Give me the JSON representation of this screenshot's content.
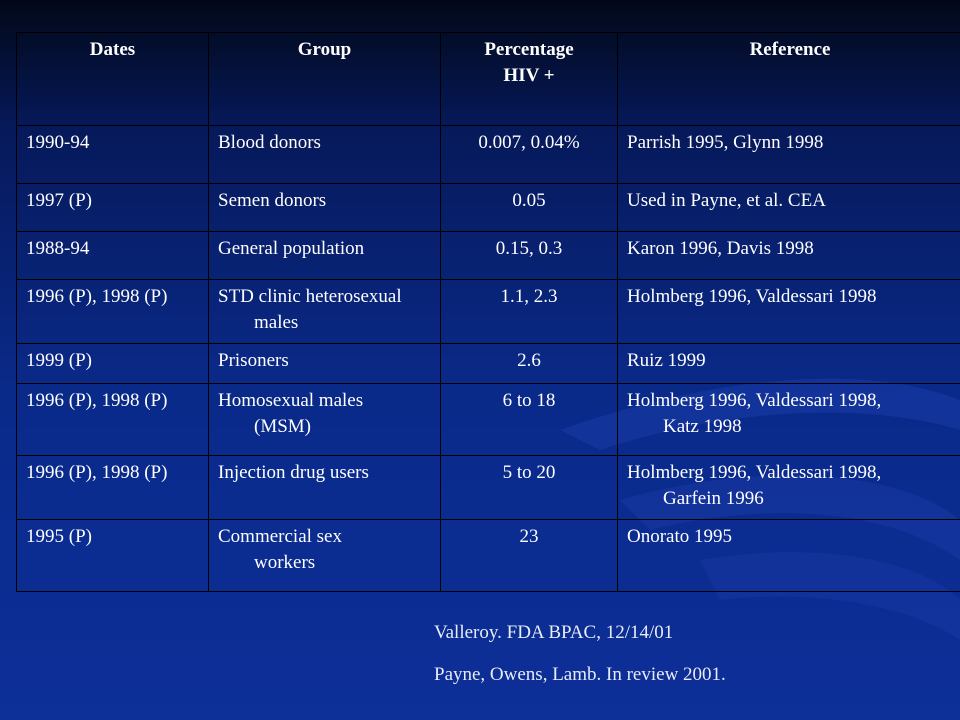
{
  "table": {
    "headers": {
      "dates": "Dates",
      "group": "Group",
      "percentage": [
        "Percentage",
        "HIV +"
      ],
      "reference": "Reference"
    },
    "rows": [
      {
        "dates": "1990-94",
        "group": [
          "Blood donors"
        ],
        "percentage": "0.007, 0.04%",
        "reference": [
          "Parrish 1995, Glynn 1998"
        ]
      },
      {
        "dates": "1997  (P)",
        "group": [
          "Semen donors"
        ],
        "percentage": "0.05",
        "reference": [
          "Used in Payne, et al. CEA"
        ]
      },
      {
        "dates": "1988-94",
        "group": [
          "General population"
        ],
        "percentage": "0.15, 0.3",
        "reference": [
          "Karon 1996, Davis 1998"
        ]
      },
      {
        "dates": "1996 (P), 1998 (P)",
        "group": [
          "STD clinic heterosexual",
          "males"
        ],
        "percentage": "1.1, 2.3",
        "reference": [
          "Holmberg 1996, Valdessari 1998"
        ]
      },
      {
        "dates": "1999 (P)",
        "group": [
          "Prisoners"
        ],
        "percentage": "2.6",
        "reference": [
          "Ruiz 1999"
        ]
      },
      {
        "dates": "1996 (P), 1998 (P)",
        "group": [
          "Homosexual males",
          "(MSM)"
        ],
        "percentage": "6 to 18",
        "reference": [
          "Holmberg 1996, Valdessari 1998,",
          "Katz 1998"
        ]
      },
      {
        "dates": "1996 (P), 1998 (P)",
        "group": [
          "Injection drug users"
        ],
        "percentage": "5 to 20",
        "reference": [
          "Holmberg 1996, Valdessari 1998,",
          "Garfein 1996"
        ]
      },
      {
        "dates": "1995 (P)",
        "group": [
          "Commercial sex",
          "workers"
        ],
        "percentage": "23",
        "reference": [
          "Onorato 1995"
        ]
      }
    ]
  },
  "citations": [
    "Valleroy.  FDA BPAC, 12/14/01",
    "Payne, Owens,  Lamb.  In review 2001."
  ],
  "colors": {
    "background_top": "#020818",
    "background_bottom": "#0c2f98",
    "text": "#ffffff",
    "grid": "#000000"
  }
}
